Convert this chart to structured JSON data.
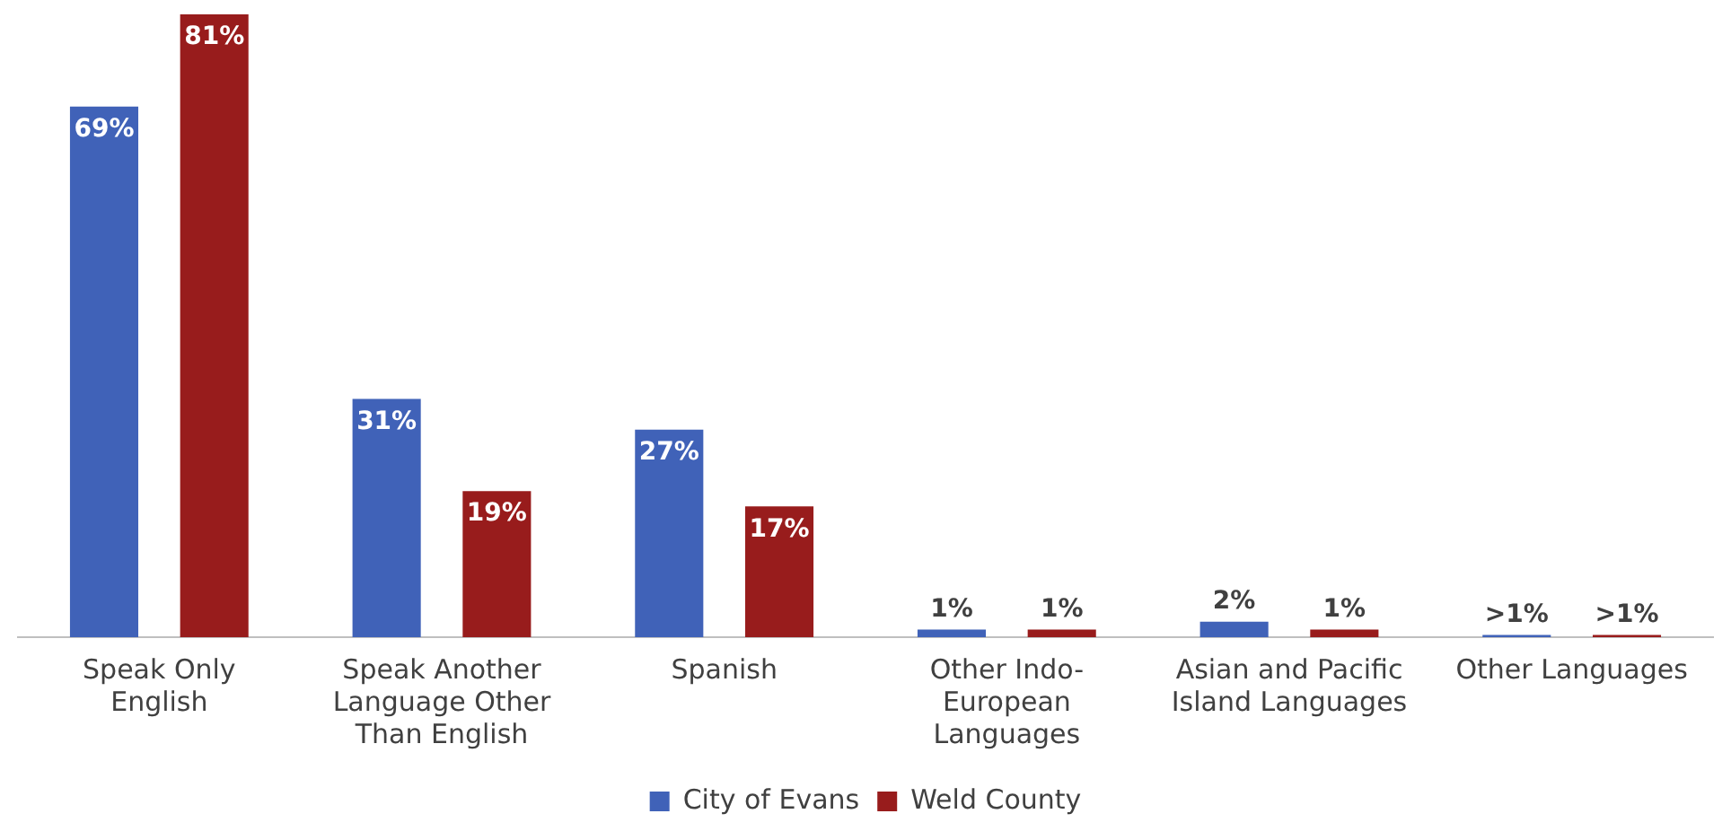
{
  "chart_data": {
    "type": "bar",
    "categories": [
      "Speak Only English",
      "Speak Another Language Other Than English",
      "Spanish",
      "Other Indo-European Languages",
      "Asian and Pacific Island Languages",
      "Other Languages"
    ],
    "series": [
      {
        "name": "City of Evans",
        "color": "#4062b8",
        "values": [
          69,
          31,
          27,
          1,
          2,
          0.3
        ],
        "value_labels": [
          "69%",
          "31%",
          "27%",
          "1%",
          "2%",
          ">1%"
        ]
      },
      {
        "name": "Weld County",
        "color": "#981c1c",
        "values": [
          81,
          19,
          17,
          1,
          1,
          0.3
        ],
        "value_labels": [
          "81%",
          "19%",
          "17%",
          "1%",
          "1%",
          ">1%"
        ]
      }
    ],
    "legend": "bottom",
    "grid": false
  }
}
